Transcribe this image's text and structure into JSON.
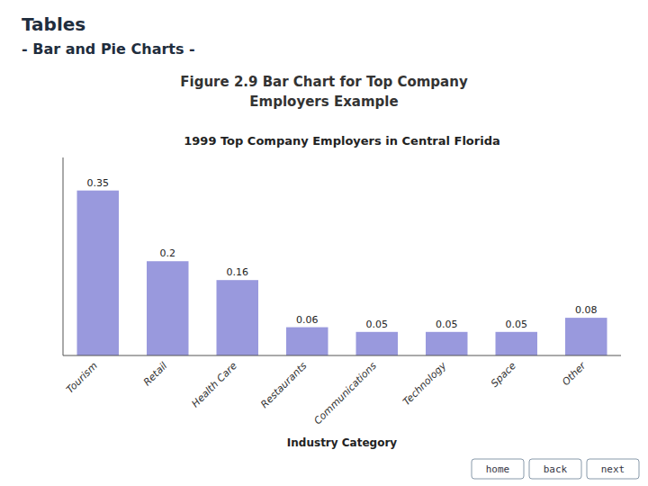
{
  "chart_data": {
    "type": "bar",
    "title": "1999 Top Company Employers in Central Florida",
    "xlabel": "Industry Category",
    "annotations": [
      "Tables",
      "- Bar and Pie Charts -",
      "Figure 2.9 Bar Chart for Top Company",
      "Employers Example",
      "home",
      "back",
      "next"
    ],
    "categories": [
      "Tourism",
      "Retail",
      "Health Care",
      "Restaurants",
      "Communications",
      "Technology",
      "Space",
      "Other"
    ],
    "values": [
      0.35,
      0.2,
      0.16,
      0.06,
      0.05,
      0.05,
      0.05,
      0.08
    ],
    "value_labels": [
      "0.35",
      "0.2",
      "0.16",
      "0.06",
      "0.05",
      "0.05",
      "0.05",
      "0.08"
    ],
    "data_labels": true,
    "color": "#9999dd",
    "ylim": [
      0,
      0.42
    ],
    "yticks": [],
    "tick_labels": "x",
    "grid": false
  }
}
